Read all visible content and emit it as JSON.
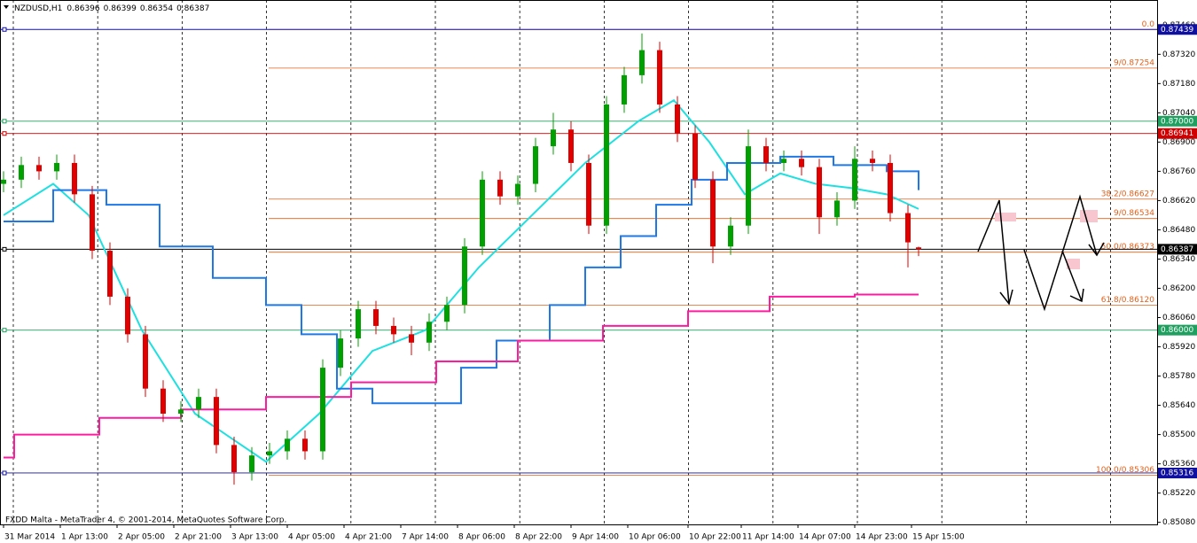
{
  "chart_data": {
    "type": "candlestick",
    "symbol": "NZDUSD,H1",
    "header_values": [
      0.86396,
      0.86399,
      0.86354,
      0.86387
    ],
    "footer": "FXDD Malta - MetaTrader 4, © 2001-2014, MetaQuotes Software Corp.",
    "up_color": "#00a000",
    "down_color": "#e00000",
    "x": [
      0,
      5,
      10,
      15,
      20,
      25,
      30,
      35,
      40,
      45,
      50,
      55,
      60,
      65,
      70,
      75,
      80,
      85,
      90,
      95,
      100,
      105,
      110,
      115,
      120,
      125,
      130,
      135,
      140,
      145,
      150,
      155,
      160,
      165,
      170,
      175,
      180,
      185,
      190,
      195,
      200,
      205,
      210,
      215,
      220,
      225,
      230,
      235,
      240,
      245,
      250,
      255,
      258
    ],
    "open": [
      0.867,
      0.8672,
      0.8679,
      0.8676,
      0.868,
      0.8665,
      0.8638,
      0.8616,
      0.8598,
      0.8572,
      0.856,
      0.8562,
      0.8568,
      0.8545,
      0.8532,
      0.854,
      0.8542,
      0.8548,
      0.8542,
      0.8582,
      0.8596,
      0.861,
      0.8602,
      0.8598,
      0.8594,
      0.8604,
      0.8612,
      0.864,
      0.8672,
      0.8664,
      0.867,
      0.8688,
      0.8696,
      0.868,
      0.865,
      0.8708,
      0.8722,
      0.8734,
      0.8708,
      0.8694,
      0.8672,
      0.864,
      0.865,
      0.8688,
      0.868,
      0.8682,
      0.8678,
      0.8654,
      0.8662,
      0.8682,
      0.868,
      0.8656,
      0.86396
    ],
    "high": [
      0.8676,
      0.8683,
      0.8683,
      0.8684,
      0.8684,
      0.8669,
      0.8642,
      0.862,
      0.8602,
      0.8576,
      0.8566,
      0.8572,
      0.8572,
      0.8549,
      0.8544,
      0.8546,
      0.8552,
      0.8552,
      0.8586,
      0.86,
      0.8614,
      0.8614,
      0.8606,
      0.8602,
      0.8608,
      0.8616,
      0.8644,
      0.8676,
      0.8676,
      0.8674,
      0.8692,
      0.8704,
      0.87,
      0.8684,
      0.8712,
      0.8726,
      0.8742,
      0.8738,
      0.8712,
      0.8698,
      0.8676,
      0.8654,
      0.8696,
      0.8692,
      0.8686,
      0.8686,
      0.8682,
      0.8666,
      0.8688,
      0.8686,
      0.8684,
      0.866,
      0.86399
    ],
    "low": [
      0.8666,
      0.8668,
      0.8672,
      0.8672,
      0.8661,
      0.8634,
      0.8612,
      0.8594,
      0.8568,
      0.8556,
      0.8556,
      0.8558,
      0.8541,
      0.8526,
      0.8528,
      0.8536,
      0.8538,
      0.8538,
      0.8538,
      0.8578,
      0.8592,
      0.8598,
      0.8594,
      0.8588,
      0.859,
      0.86,
      0.8608,
      0.8636,
      0.866,
      0.866,
      0.8666,
      0.8684,
      0.8676,
      0.8646,
      0.8646,
      0.8704,
      0.8718,
      0.8704,
      0.869,
      0.8668,
      0.8632,
      0.8636,
      0.8646,
      0.8676,
      0.8676,
      0.8674,
      0.8646,
      0.865,
      0.8658,
      0.8676,
      0.8652,
      0.863,
      0.86354
    ],
    "close": [
      0.8672,
      0.8679,
      0.8676,
      0.868,
      0.8665,
      0.8638,
      0.8616,
      0.8598,
      0.8572,
      0.856,
      0.8562,
      0.8568,
      0.8545,
      0.8532,
      0.854,
      0.8542,
      0.8548,
      0.8542,
      0.8582,
      0.8596,
      0.861,
      0.8602,
      0.8598,
      0.8594,
      0.8604,
      0.8612,
      0.864,
      0.8672,
      0.8664,
      0.867,
      0.8688,
      0.8696,
      0.868,
      0.865,
      0.8708,
      0.8722,
      0.8734,
      0.8708,
      0.8694,
      0.8672,
      0.864,
      0.865,
      0.8688,
      0.868,
      0.8682,
      0.8678,
      0.8654,
      0.8662,
      0.8682,
      0.868,
      0.8656,
      0.8642,
      0.86387
    ],
    "indicators": [
      {
        "color": "#1ee0e0",
        "step": false,
        "x": [
          0,
          14,
          24,
          39,
          54,
          74,
          89,
          104,
          119,
          134,
          149,
          164,
          179,
          189,
          199,
          209,
          219,
          229,
          239,
          249,
          258
        ],
        "values": [
          0.8655,
          0.867,
          0.8655,
          0.86,
          0.856,
          0.8537,
          0.856,
          0.859,
          0.86,
          0.863,
          0.8655,
          0.868,
          0.87,
          0.871,
          0.869,
          0.8665,
          0.8675,
          0.867,
          0.8668,
          0.8665,
          0.8658
        ]
      },
      {
        "color": "#1e78e6",
        "step": true,
        "x": [
          0,
          14,
          29,
          44,
          59,
          74,
          84,
          94,
          104,
          119,
          129,
          139,
          154,
          164,
          174,
          184,
          194,
          204,
          219,
          234,
          249,
          258
        ],
        "values": [
          0.8652,
          0.8667,
          0.866,
          0.864,
          0.8625,
          0.8612,
          0.8598,
          0.8572,
          0.8565,
          0.8565,
          0.8582,
          0.8595,
          0.8612,
          0.863,
          0.8645,
          0.866,
          0.8672,
          0.868,
          0.8683,
          0.8679,
          0.8676,
          0.8667
        ]
      },
      {
        "color": "#ff1aa0",
        "step": true,
        "x": [
          0,
          3,
          27,
          50,
          74,
          98,
          122,
          145,
          169,
          193,
          216,
          240,
          258
        ],
        "values": [
          0.8539,
          0.855,
          0.8558,
          0.8562,
          0.8568,
          0.8575,
          0.8585,
          0.8595,
          0.8602,
          0.8609,
          0.8616,
          0.8617,
          0.8617
        ]
      }
    ],
    "levels": [
      {
        "value": 0.87439,
        "label": "0.87439",
        "color": "#1010a0"
      },
      {
        "value": 0.87,
        "label": "0.87000",
        "color": "#20a060"
      },
      {
        "value": 0.86941,
        "label": "0.86941",
        "color": "#d00000"
      },
      {
        "value": 0.86387,
        "label": "0.86387",
        "color": "#000000"
      },
      {
        "value": 0.86,
        "label": "0.86000",
        "color": "#20a060"
      },
      {
        "value": 0.85316,
        "label": "0.85316",
        "color": "#1010a0"
      }
    ],
    "fib_levels": [
      {
        "value": 0.87439,
        "label": "0.0"
      },
      {
        "value": 0.87254,
        "label": "9/0.87254"
      },
      {
        "value": 0.86627,
        "label": "38.2/0.86627"
      },
      {
        "value": 0.86534,
        "label": "9/0.86534"
      },
      {
        "value": 0.86373,
        "label": "50.0/0.86373"
      },
      {
        "value": 0.8612,
        "label": "61.8/0.86120"
      },
      {
        "value": 0.85306,
        "label": "100.0/0.85306"
      }
    ],
    "xlim": [
      -1,
      325.25
    ],
    "xticks": [
      {
        "value": 0,
        "label": "31 Mar 2014"
      },
      {
        "value": 16,
        "label": "1 Apr 13:00"
      },
      {
        "value": 32,
        "label": "2 Apr 05:00"
      },
      {
        "value": 48,
        "label": "2 Apr 21:00"
      },
      {
        "value": 64,
        "label": "3 Apr 13:00"
      },
      {
        "value": 80,
        "label": "4 Apr 05:00"
      },
      {
        "value": 96,
        "label": "4 Apr 21:00"
      },
      {
        "value": 112,
        "label": "7 Apr 14:00"
      },
      {
        "value": 128,
        "label": "8 Apr 06:00"
      },
      {
        "value": 144,
        "label": "8 Apr 22:00"
      },
      {
        "value": 160,
        "label": "9 Apr 14:00"
      },
      {
        "value": 176,
        "label": "10 Apr 06:00"
      },
      {
        "value": 193,
        "label": "10 Apr 22:00"
      },
      {
        "value": 208,
        "label": "11 Apr 14:00"
      },
      {
        "value": 224,
        "label": "14 Apr 07:00"
      },
      {
        "value": 240,
        "label": "14 Apr 23:00"
      },
      {
        "value": 256,
        "label": "15 Apr 15:00"
      }
    ],
    "ylim": [
      0.8507,
      0.8758
    ],
    "yticks": [
      {
        "value": 0.8746,
        "label": "0.87460"
      },
      {
        "value": 0.8732,
        "label": "0.87320"
      },
      {
        "value": 0.8718,
        "label": "0.87180"
      },
      {
        "value": 0.8704,
        "label": "0.87040"
      },
      {
        "value": 0.869,
        "label": "0.86900"
      },
      {
        "value": 0.8676,
        "label": "0.86760"
      },
      {
        "value": 0.8662,
        "label": "0.86620"
      },
      {
        "value": 0.8648,
        "label": "0.86480"
      },
      {
        "value": 0.8634,
        "label": "0.86340"
      },
      {
        "value": 0.862,
        "label": "0.86200"
      },
      {
        "value": 0.8606,
        "label": "0.86060"
      },
      {
        "value": 0.8592,
        "label": "0.85920"
      },
      {
        "value": 0.8578,
        "label": "0.85780"
      },
      {
        "value": 0.8564,
        "label": "0.85640"
      },
      {
        "value": 0.855,
        "label": "0.85500"
      },
      {
        "value": 0.8536,
        "label": "0.85360"
      },
      {
        "value": 0.8522,
        "label": "0.85220"
      },
      {
        "value": 0.8508,
        "label": "0.85080"
      }
    ]
  }
}
